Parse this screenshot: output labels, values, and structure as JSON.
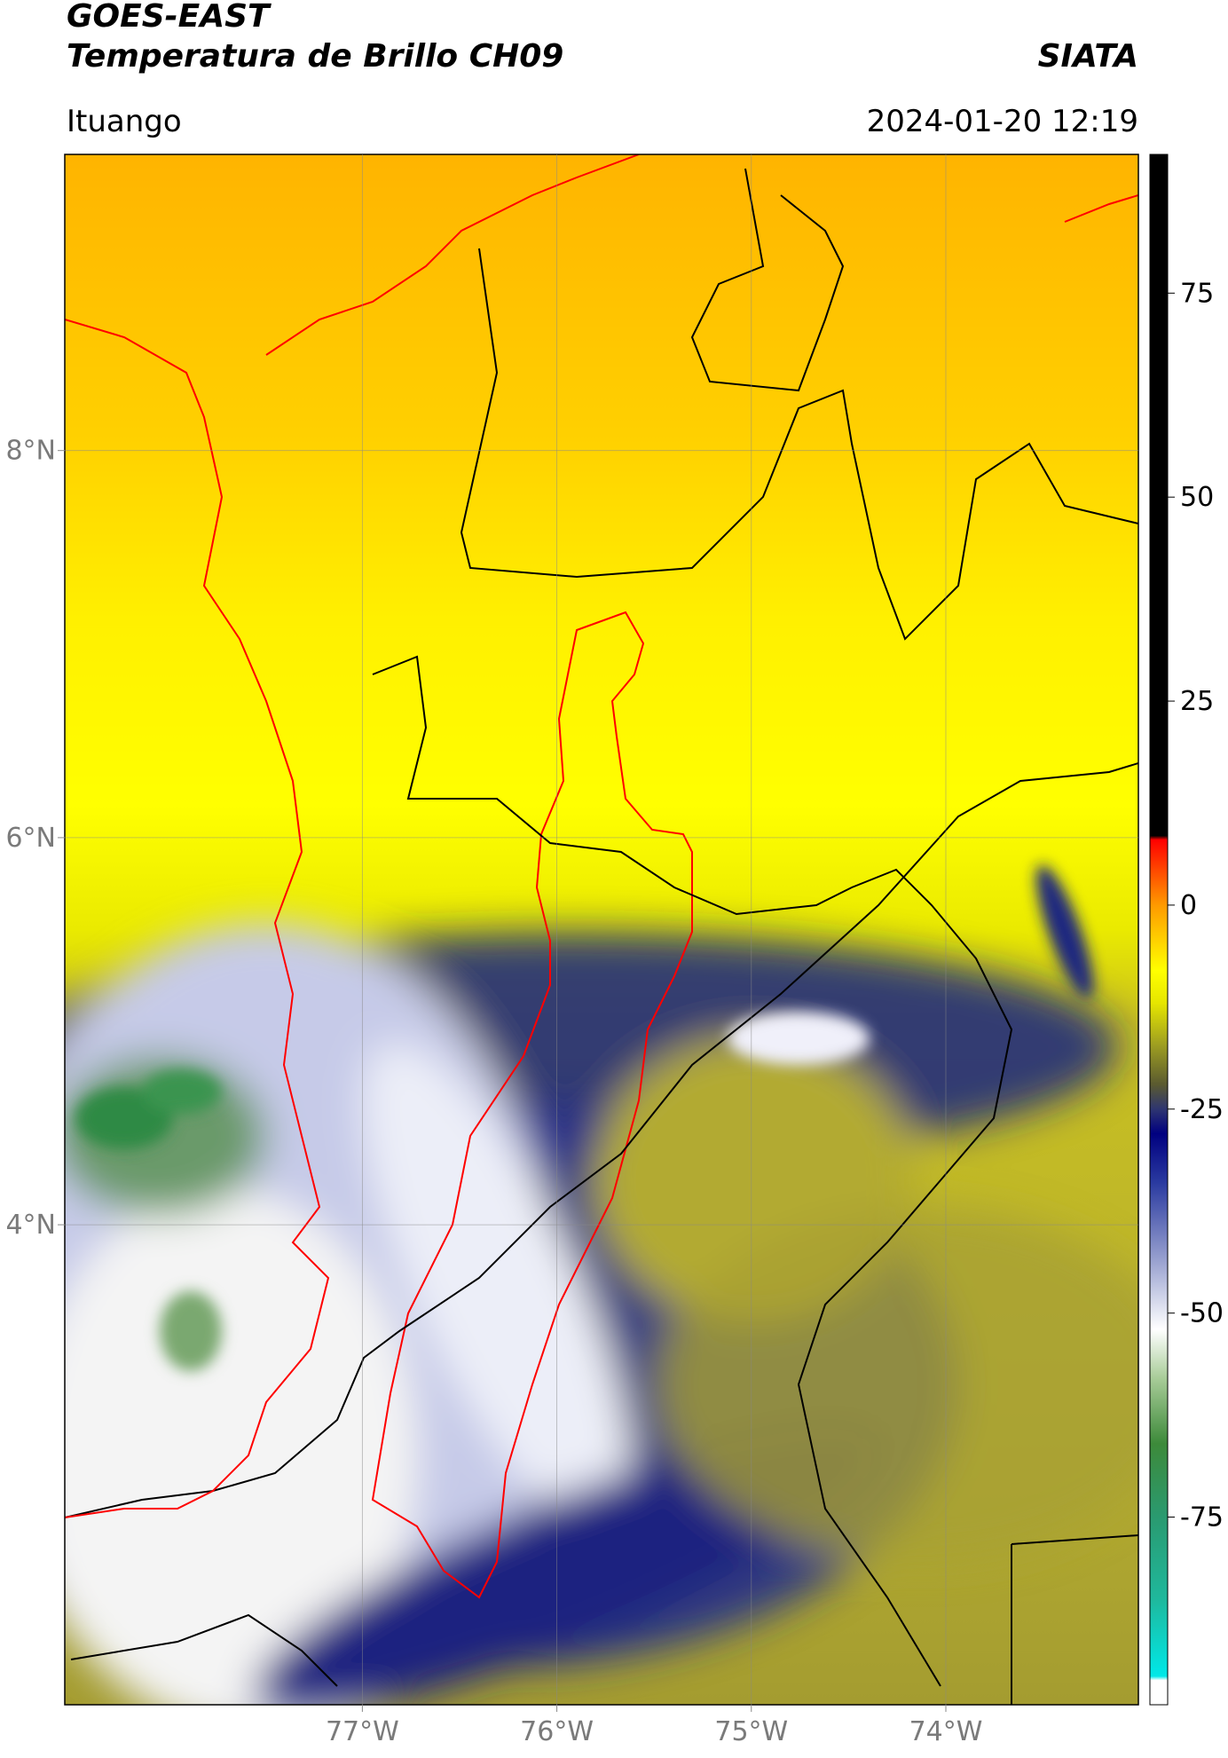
{
  "header": {
    "title": "GOES-EAST",
    "subtitle": "Temperatura de Brillo CH09",
    "source": "SIATA",
    "region": "Ituango",
    "datetime": "2024-01-20 12:19"
  },
  "map": {
    "xlim": [
      -78.53,
      -73.01
    ],
    "ylim": [
      1.52,
      9.53
    ],
    "xticks": [
      {
        "value": -77,
        "label": "77°W"
      },
      {
        "value": -76,
        "label": "76°W"
      },
      {
        "value": -75,
        "label": "75°W"
      },
      {
        "value": -74,
        "label": "74°W"
      }
    ],
    "yticks": [
      {
        "value": 8,
        "label": "8°N"
      },
      {
        "value": 6,
        "label": "6°N"
      },
      {
        "value": 4,
        "label": "4°N"
      }
    ],
    "grid": true
  },
  "colorbar": {
    "ylim": [
      -98,
      92
    ],
    "yticks": [
      75,
      50,
      25,
      0,
      -25,
      -50,
      -75
    ],
    "stops": [
      {
        "value": -98,
        "color": "#ffffff"
      },
      {
        "value": -95,
        "color": "#ffffff"
      },
      {
        "value": -94.5,
        "color": "#00e8e8"
      },
      {
        "value": -85,
        "color": "#1fb89c"
      },
      {
        "value": -75,
        "color": "#2a9a70"
      },
      {
        "value": -66,
        "color": "#3d8a3a"
      },
      {
        "value": -58,
        "color": "#a8cc98"
      },
      {
        "value": -52,
        "color": "#ffffff"
      },
      {
        "value": -44,
        "color": "#9ea6d2"
      },
      {
        "value": -34,
        "color": "#2a3aa0"
      },
      {
        "value": -28,
        "color": "#000080"
      },
      {
        "value": -25,
        "color": "#2e3570"
      },
      {
        "value": -22,
        "color": "#5a5a30"
      },
      {
        "value": -17,
        "color": "#a0a020"
      },
      {
        "value": -12,
        "color": "#e6e600"
      },
      {
        "value": -8,
        "color": "#ffff00"
      },
      {
        "value": -3,
        "color": "#ffc000"
      },
      {
        "value": 0,
        "color": "#ff9a00"
      },
      {
        "value": 5,
        "color": "#ff3a00"
      },
      {
        "value": 8,
        "color": "#ff0000"
      },
      {
        "value": 8.5,
        "color": "#000000"
      },
      {
        "value": 92,
        "color": "#000000"
      }
    ]
  }
}
